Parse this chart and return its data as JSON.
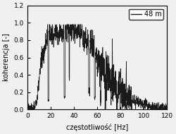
{
  "title": "",
  "xlabel": "częstotliwość [Hz]",
  "ylabel": "koherencja [-]",
  "xlim": [
    0,
    120
  ],
  "ylim": [
    0,
    1.2
  ],
  "xticks": [
    0,
    20,
    40,
    60,
    80,
    100,
    120
  ],
  "yticks": [
    0,
    0.2,
    0.4,
    0.6,
    0.8,
    1.0,
    1.2
  ],
  "legend_label": "48 m",
  "line_color": "#1a1a1a",
  "background_color": "#f0f0f0",
  "figsize": [
    2.5,
    1.9
  ],
  "dpi": 100
}
